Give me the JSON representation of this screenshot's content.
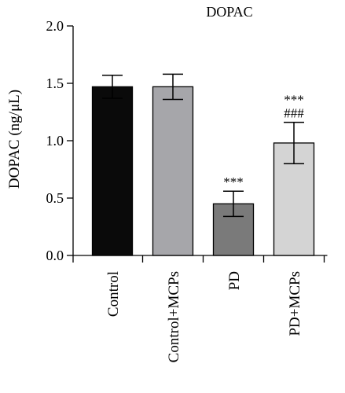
{
  "chart_data": {
    "type": "bar",
    "title": "DOPAC",
    "ylabel": "DOPAC (ng/μL)",
    "xlabel": "",
    "ylim": [
      0,
      2.0
    ],
    "yticks": [
      "0.0",
      "0.5",
      "1.0",
      "1.5",
      "2.0"
    ],
    "grid": false,
    "categories": [
      "Control",
      "Control+MCPs",
      "PD",
      "PD+MCPs"
    ],
    "values": [
      1.47,
      1.47,
      0.45,
      0.98
    ],
    "errors": [
      0.1,
      0.11,
      0.11,
      0.18
    ],
    "colors": [
      "#0a0a0a",
      "#a6a6aa",
      "#7a7a7a",
      "#d4d4d4"
    ],
    "annotations": [
      {
        "category": "PD",
        "lines": [
          "***"
        ]
      },
      {
        "category": "PD+MCPs",
        "lines": [
          "***",
          "###"
        ]
      }
    ]
  }
}
